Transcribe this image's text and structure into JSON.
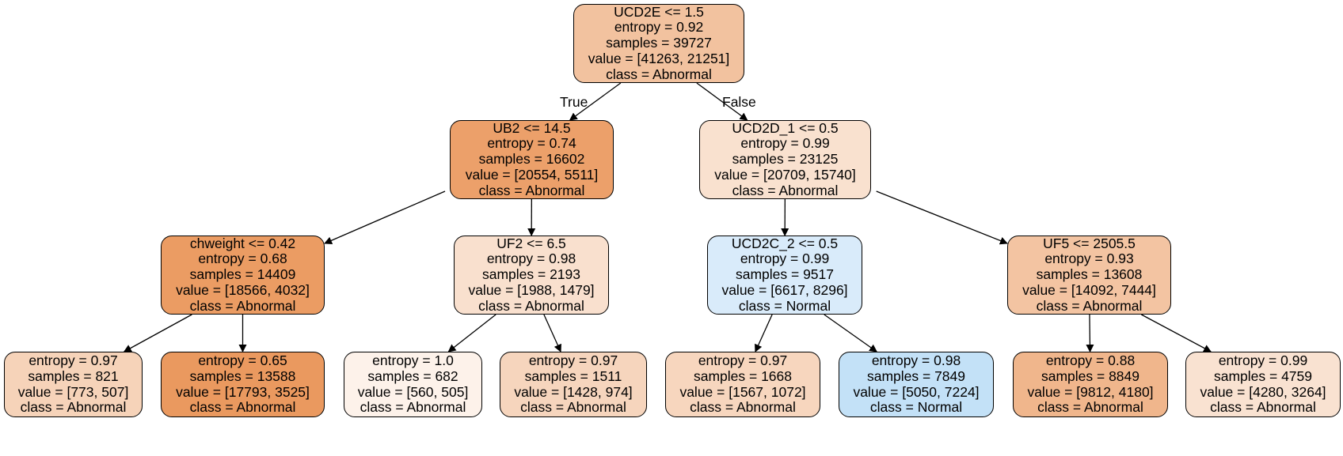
{
  "tree": {
    "edge_labels": {
      "true_label": "True",
      "false_label": "False"
    },
    "nodes": [
      {
        "id": "n0",
        "color": "#f2c29f",
        "lines": [
          "UCD2E <= 1.5",
          "entropy = 0.92",
          "samples = 39727",
          "value = [41263, 21251]",
          "class = Abnormal"
        ]
      },
      {
        "id": "n1",
        "color": "#eca06a",
        "lines": [
          "UB2 <= 14.5",
          "entropy = 0.74",
          "samples = 16602",
          "value = [20554, 5511]",
          "class = Abnormal"
        ]
      },
      {
        "id": "n2",
        "color": "#f9e1cf",
        "lines": [
          "UCD2D_1 <= 0.5",
          "entropy = 0.99",
          "samples = 23125",
          "value = [20709, 15740]",
          "class = Abnormal"
        ]
      },
      {
        "id": "n3",
        "color": "#eb9c63",
        "lines": [
          "chweight <= 0.42",
          "entropy = 0.68",
          "samples = 14409",
          "value = [18566, 4032]",
          "class = Abnormal"
        ]
      },
      {
        "id": "n4",
        "color": "#f9e0ce",
        "lines": [
          "UF2 <= 6.5",
          "entropy = 0.98",
          "samples = 2193",
          "value = [1988, 1479]",
          "class = Abnormal"
        ]
      },
      {
        "id": "n5",
        "color": "#d9ebfa",
        "lines": [
          "UCD2C_2 <= 0.5",
          "entropy = 0.99",
          "samples = 9517",
          "value = [6617, 8296]",
          "class = Normal"
        ]
      },
      {
        "id": "n6",
        "color": "#f3c4a2",
        "lines": [
          "UF5 <= 2505.5",
          "entropy = 0.93",
          "samples = 13608",
          "value = [14092, 7444]",
          "class = Abnormal"
        ]
      },
      {
        "id": "n7",
        "color": "#f6d3b9",
        "lines": [
          "entropy = 0.97",
          "samples = 821",
          "value = [773, 507]",
          "class = Abnormal"
        ]
      },
      {
        "id": "n8",
        "color": "#ea995f",
        "lines": [
          "entropy = 0.65",
          "samples = 13588",
          "value = [17793, 3525]",
          "class = Abnormal"
        ]
      },
      {
        "id": "n9",
        "color": "#fdf2ea",
        "lines": [
          "entropy = 1.0",
          "samples = 682",
          "value = [560, 505]",
          "class = Abnormal"
        ]
      },
      {
        "id": "n10",
        "color": "#f6d5bd",
        "lines": [
          "entropy = 0.97",
          "samples = 1511",
          "value = [1428, 974]",
          "class = Abnormal"
        ]
      },
      {
        "id": "n11",
        "color": "#f7d6be",
        "lines": [
          "entropy = 0.97",
          "samples = 1668",
          "value = [1567, 1072]",
          "class = Abnormal"
        ]
      },
      {
        "id": "n12",
        "color": "#c3e1f7",
        "lines": [
          "entropy = 0.98",
          "samples = 7849",
          "value = [5050, 7224]",
          "class = Normal"
        ]
      },
      {
        "id": "n13",
        "color": "#f0b68c",
        "lines": [
          "entropy = 0.88",
          "samples = 8849",
          "value = [9812, 4180]",
          "class = Abnormal"
        ]
      },
      {
        "id": "n14",
        "color": "#f9e2d1",
        "lines": [
          "entropy = 0.99",
          "samples = 4759",
          "value = [4280, 3264]",
          "class = Abnormal"
        ]
      }
    ],
    "edges": [
      {
        "from": "n0",
        "to": "n1"
      },
      {
        "from": "n0",
        "to": "n2"
      },
      {
        "from": "n1",
        "to": "n3"
      },
      {
        "from": "n1",
        "to": "n4"
      },
      {
        "from": "n2",
        "to": "n5"
      },
      {
        "from": "n2",
        "to": "n6"
      },
      {
        "from": "n3",
        "to": "n7"
      },
      {
        "from": "n3",
        "to": "n8"
      },
      {
        "from": "n4",
        "to": "n9"
      },
      {
        "from": "n4",
        "to": "n10"
      },
      {
        "from": "n5",
        "to": "n11"
      },
      {
        "from": "n5",
        "to": "n12"
      },
      {
        "from": "n6",
        "to": "n13"
      },
      {
        "from": "n6",
        "to": "n14"
      }
    ]
  }
}
